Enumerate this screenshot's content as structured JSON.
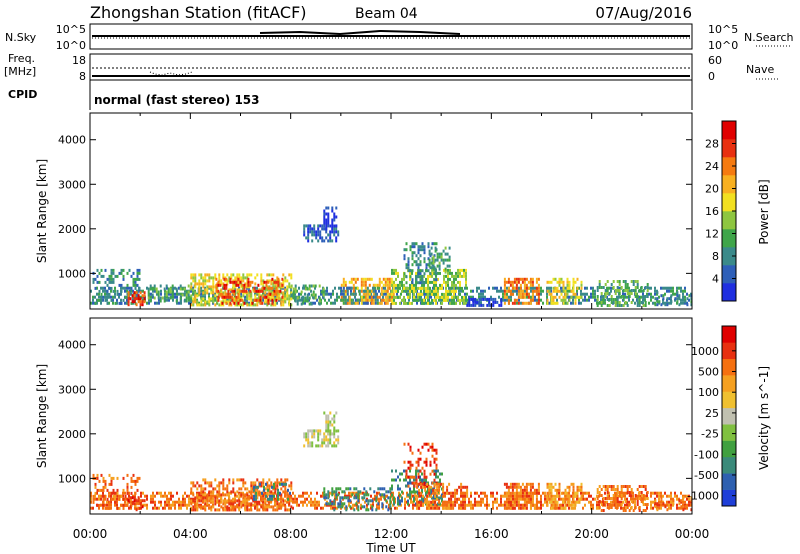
{
  "header": {
    "station": "Zhongshan Station (fitACF)",
    "beam": "Beam 04",
    "date": "07/Aug/2016"
  },
  "status_panels": {
    "nsky": {
      "left_label": "N.Sky",
      "left_ticks": [
        "10^5",
        "10^0"
      ],
      "right_label": "N.Search",
      "right_ticks": [
        "10^5",
        "10^0"
      ]
    },
    "freq": {
      "left_label_1": "Freq.",
      "left_label_2": "[MHz]",
      "left_ticks": [
        "18",
        "8"
      ],
      "right_label": "Nave",
      "right_ticks": [
        "60",
        "0"
      ]
    },
    "cpid": {
      "label": "CPID",
      "value": "normal (fast stereo) 153"
    }
  },
  "chart_data": [
    {
      "type": "heatmap",
      "name": "power",
      "ylabel": "Slant Range [km]",
      "xlabel": "Time UT",
      "xlim": [
        0,
        24
      ],
      "ylim": [
        200,
        4600
      ],
      "x_ticks": [
        "00:00",
        "04:00",
        "08:00",
        "12:00",
        "16:00",
        "20:00",
        "00:00"
      ],
      "y_ticks": [
        "1000",
        "2000",
        "3000",
        "4000"
      ],
      "colorbar": {
        "label": "Power [dB]",
        "ticks": [
          "4",
          "8",
          "12",
          "16",
          "20",
          "24",
          "28"
        ],
        "colors": [
          "#1f2fe0",
          "#2e5fb8",
          "#3a8a8a",
          "#3fa54a",
          "#8ec640",
          "#f2e020",
          "#f8b020",
          "#f57a10",
          "#e83010",
          "#e00000"
        ]
      },
      "regions": [
        {
          "t0": 0.0,
          "t1": 24.0,
          "r0": 300,
          "r1": 700,
          "c": 2,
          "d": 0.5
        },
        {
          "t0": 0.1,
          "t1": 2.0,
          "r0": 300,
          "r1": 1100,
          "c": 2,
          "d": 0.35
        },
        {
          "t0": 1.5,
          "t1": 2.2,
          "r0": 300,
          "r1": 600,
          "c": 8,
          "d": 0.6
        },
        {
          "t0": 2.3,
          "t1": 4.3,
          "r0": 350,
          "r1": 750,
          "c": 3,
          "d": 0.45
        },
        {
          "t0": 4.0,
          "t1": 8.0,
          "r0": 300,
          "r1": 1000,
          "c": 5,
          "d": 0.6
        },
        {
          "t0": 5.0,
          "t1": 7.7,
          "r0": 300,
          "r1": 900,
          "c": 8,
          "d": 0.4
        },
        {
          "t0": 8.0,
          "t1": 9.3,
          "r0": 300,
          "r1": 750,
          "c": 3,
          "d": 0.45
        },
        {
          "t0": 8.5,
          "t1": 9.9,
          "r0": 1700,
          "r1": 2100,
          "c": 1,
          "d": 0.6
        },
        {
          "t0": 9.3,
          "t1": 9.8,
          "r0": 2000,
          "r1": 2500,
          "c": 0,
          "d": 0.5
        },
        {
          "t0": 10.0,
          "t1": 12.1,
          "r0": 300,
          "r1": 900,
          "c": 6,
          "d": 0.55
        },
        {
          "t0": 10.0,
          "t1": 11.5,
          "r0": 300,
          "r1": 700,
          "c": 2,
          "d": 0.35
        },
        {
          "t0": 12.0,
          "t1": 15.0,
          "r0": 300,
          "r1": 1100,
          "c": 4,
          "d": 0.6
        },
        {
          "t0": 12.5,
          "t1": 13.8,
          "r0": 800,
          "r1": 1700,
          "c": 2,
          "d": 0.35
        },
        {
          "t0": 13.5,
          "t1": 14.3,
          "r0": 1000,
          "r1": 1600,
          "c": 3,
          "d": 0.4
        },
        {
          "t0": 15.0,
          "t1": 16.4,
          "r0": 300,
          "r1": 450,
          "c": 0,
          "d": 0.7
        },
        {
          "t0": 16.5,
          "t1": 17.9,
          "r0": 300,
          "r1": 900,
          "c": 7,
          "d": 0.55
        },
        {
          "t0": 18.2,
          "t1": 19.6,
          "r0": 300,
          "r1": 900,
          "c": 5,
          "d": 0.55
        },
        {
          "t0": 20.2,
          "t1": 22.2,
          "r0": 300,
          "r1": 850,
          "c": 3,
          "d": 0.5
        },
        {
          "t0": 22.5,
          "t1": 24.0,
          "r0": 300,
          "r1": 600,
          "c": 2,
          "d": 0.3
        }
      ]
    },
    {
      "type": "heatmap",
      "name": "velocity",
      "ylabel": "Slant Range [km]",
      "xlabel": "Time UT",
      "xlim": [
        0,
        24
      ],
      "ylim": [
        200,
        4600
      ],
      "x_ticks": [
        "00:00",
        "04:00",
        "08:00",
        "12:00",
        "16:00",
        "20:00",
        "00:00"
      ],
      "y_ticks": [
        "1000",
        "2000",
        "3000",
        "4000"
      ],
      "colorbar": {
        "label": "Velocity [m s^-1]",
        "ticks": [
          "1000",
          "500",
          "100",
          "25",
          "-25",
          "-100",
          "-500",
          "-1000"
        ],
        "colors": [
          "#1f3fd8",
          "#2e60b0",
          "#3a8a7a",
          "#40a040",
          "#80c040",
          "#c0c0b0",
          "#f0c030",
          "#f5a020",
          "#f57010",
          "#e83010",
          "#e00000"
        ]
      },
      "regions": [
        {
          "t0": 0.0,
          "t1": 24.0,
          "r0": 300,
          "r1": 700,
          "c": 8,
          "d": 0.55
        },
        {
          "t0": 0.1,
          "t1": 2.0,
          "r0": 300,
          "r1": 1100,
          "c": 8,
          "d": 0.3
        },
        {
          "t0": 1.5,
          "t1": 2.2,
          "r0": 300,
          "r1": 600,
          "c": 9,
          "d": 0.4
        },
        {
          "t0": 4.0,
          "t1": 8.0,
          "r0": 300,
          "r1": 1000,
          "c": 8,
          "d": 0.55
        },
        {
          "t0": 6.5,
          "t1": 8.0,
          "r0": 500,
          "r1": 900,
          "c": 2,
          "d": 0.3
        },
        {
          "t0": 8.5,
          "t1": 9.9,
          "r0": 1700,
          "r1": 2100,
          "c": 5,
          "d": 0.6
        },
        {
          "t0": 9.3,
          "t1": 9.8,
          "r0": 2000,
          "r1": 2500,
          "c": 5,
          "d": 0.5
        },
        {
          "t0": 9.3,
          "t1": 12.0,
          "r0": 300,
          "r1": 800,
          "c": 2,
          "d": 0.45
        },
        {
          "t0": 12.0,
          "t1": 14.0,
          "r0": 400,
          "r1": 1200,
          "c": 2,
          "d": 0.4
        },
        {
          "t0": 12.5,
          "t1": 13.8,
          "r0": 800,
          "r1": 1800,
          "c": 9,
          "d": 0.3
        },
        {
          "t0": 13.0,
          "t1": 15.0,
          "r0": 300,
          "r1": 900,
          "c": 8,
          "d": 0.55
        },
        {
          "t0": 16.5,
          "t1": 17.9,
          "r0": 300,
          "r1": 900,
          "c": 8,
          "d": 0.55
        },
        {
          "t0": 18.2,
          "t1": 19.6,
          "r0": 300,
          "r1": 900,
          "c": 7,
          "d": 0.55
        },
        {
          "t0": 20.2,
          "t1": 22.2,
          "r0": 300,
          "r1": 850,
          "c": 8,
          "d": 0.5
        },
        {
          "t0": 22.5,
          "t1": 24.0,
          "r0": 300,
          "r1": 600,
          "c": 8,
          "d": 0.3
        }
      ]
    }
  ]
}
